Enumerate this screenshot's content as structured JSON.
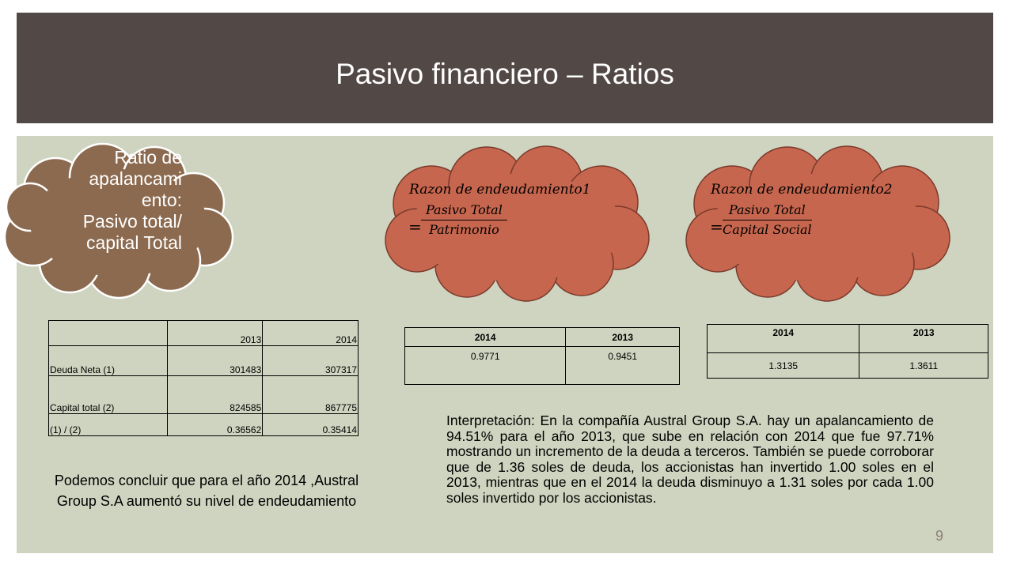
{
  "slide": {
    "title": "Pasivo financiero – Ratios",
    "page_number": "9"
  },
  "cloud_left": {
    "lines": [
      "Ratio de",
      "apalancami",
      "ento:",
      "Pasivo total/",
      "capital Total"
    ],
    "color": "#8b6a4f"
  },
  "formula1": {
    "lhs": "Razon de endeudamiento1",
    "eq": "=",
    "numerator": "Pasivo Total",
    "denominator": "Patrimonio",
    "cloud_color": "#c7664e"
  },
  "formula2": {
    "lhs": "Razon de endeudamiento2",
    "eq": "=",
    "numerator": "Pasivo Total",
    "denominator": "Capital Social",
    "cloud_color": "#c7664e"
  },
  "table_ratio": {
    "header": [
      "",
      "2013",
      "2014"
    ],
    "rows": [
      [
        "Deuda Neta (1)",
        "301483",
        "307317"
      ],
      [
        "Capital total (2)",
        "824585",
        "867775"
      ],
      [
        "(1) / (2)",
        "0.36562",
        "0.35414"
      ]
    ]
  },
  "table_razon1": {
    "header": [
      "2014",
      "2013"
    ],
    "values": [
      "0.9771",
      "0.9451"
    ]
  },
  "table_razon2": {
    "header": [
      "2014",
      "2013"
    ],
    "values": [
      "1.3135",
      "1.3611"
    ]
  },
  "conclusion": "Podemos concluir que para el año 2014 ,Austral Group S.A aumentó su nivel de endeudamiento",
  "interpretation": "Interpretación: En la compañía Austral Group S.A. hay un apalancamiento de 94.51% para el año 2013, que sube en relación con 2014 que fue 97.71% mostrando un incremento de la deuda a terceros. También se puede corroborar que de 1.36 soles de deuda, los accionistas han invertido 1.00 soles en el 2013, mientras que en el 2014 la deuda disminuyo a 1.31 soles por cada 1.00 soles invertido por los accionistas."
}
